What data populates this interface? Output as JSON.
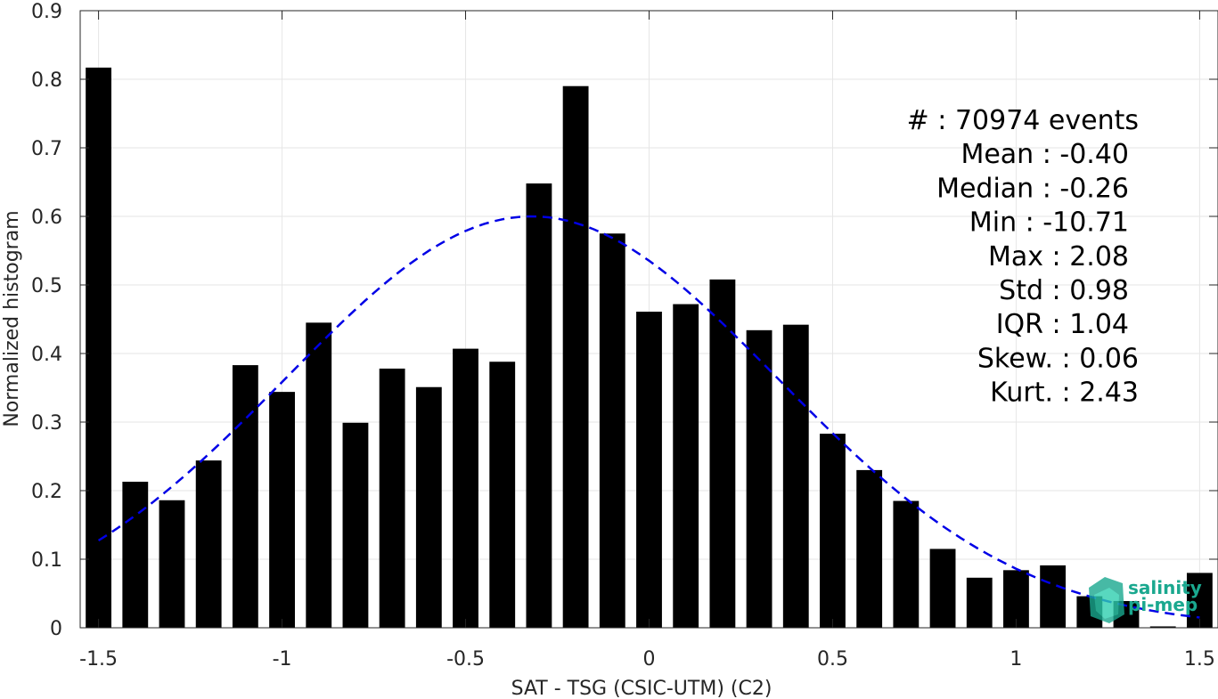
{
  "chart_data": {
    "type": "bar",
    "xlabel": "SAT - TSG (CSIC-UTM) (C2)",
    "ylabel": "Normalized histogram",
    "xlim": [
      -1.55,
      1.55
    ],
    "ylim": [
      0,
      0.9
    ],
    "x_ticks": [
      "-1.5",
      "-1",
      "-0.5",
      "0",
      "0.5",
      "1",
      "1.5"
    ],
    "y_ticks": [
      "0",
      "0.1",
      "0.2",
      "0.3",
      "0.4",
      "0.5",
      "0.6",
      "0.7",
      "0.8",
      "0.9"
    ],
    "grid": true,
    "bar_color": "#000000",
    "bin_width": 0.1,
    "x": [
      -1.5,
      -1.4,
      -1.3,
      -1.2,
      -1.1,
      -1.0,
      -0.9,
      -0.8,
      -0.7,
      -0.6,
      -0.5,
      -0.4,
      -0.3,
      -0.2,
      -0.1,
      0.0,
      0.1,
      0.2,
      0.3,
      0.4,
      0.5,
      0.6,
      0.7,
      0.8,
      0.9,
      1.0,
      1.1,
      1.2,
      1.3,
      1.4,
      1.5
    ],
    "values": [
      0.817,
      0.213,
      0.186,
      0.244,
      0.383,
      0.344,
      0.445,
      0.299,
      0.378,
      0.351,
      0.407,
      0.388,
      0.648,
      0.79,
      0.575,
      0.461,
      0.472,
      0.508,
      0.434,
      0.442,
      0.283,
      0.23,
      0.185,
      0.115,
      0.073,
      0.084,
      0.091,
      0.046,
      0.039,
      0.002,
      0.08
    ],
    "fit_curve": {
      "type": "gaussian",
      "color": "#0000e6",
      "style": "dashed",
      "x_range": [
        -1.5,
        1.5
      ],
      "mean": -0.32,
      "std": 0.67,
      "peak": 0.6
    },
    "stats": [
      {
        "label": "#  ",
        "value": ": 70974 events"
      },
      {
        "label": "Mean ",
        "value": ": -0.40"
      },
      {
        "label": "Median ",
        "value": ": -0.26"
      },
      {
        "label": "Min ",
        "value": ": -10.71"
      },
      {
        "label": "Max ",
        "value": ": 2.08"
      },
      {
        "label": "Std ",
        "value": ": 0.98"
      },
      {
        "label": "IQR ",
        "value": ": 1.04"
      },
      {
        "label": "Skew. ",
        "value": ": 0.06"
      },
      {
        "label": "Kurt. ",
        "value": ": 2.43"
      }
    ]
  },
  "logo": {
    "line1": "salinity",
    "line2": "pi-mep",
    "color": "#1aa88f"
  }
}
